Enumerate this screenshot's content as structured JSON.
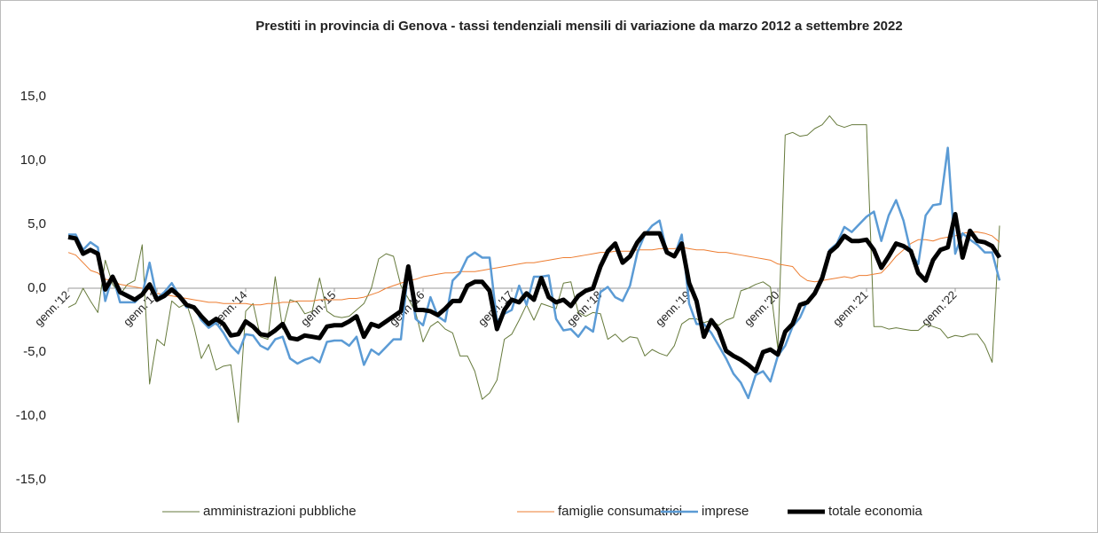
{
  "chart_data": {
    "type": "line",
    "title": "Prestiti in provincia di Genova - tassi tendenziali mensili di variazione da marzo 2012 a settembre 2022",
    "categories": [
      "genn.'12",
      null,
      null,
      null,
      null,
      null,
      null,
      null,
      null,
      null,
      null,
      null,
      "genn.'13",
      null,
      null,
      null,
      null,
      null,
      null,
      null,
      null,
      null,
      null,
      null,
      "genn.'14",
      null,
      null,
      null,
      null,
      null,
      null,
      null,
      null,
      null,
      null,
      null,
      "genn.'15",
      null,
      null,
      null,
      null,
      null,
      null,
      null,
      null,
      null,
      null,
      null,
      "genn.'16",
      null,
      null,
      null,
      null,
      null,
      null,
      null,
      null,
      null,
      null,
      null,
      "genn.'17",
      null,
      null,
      null,
      null,
      null,
      null,
      null,
      null,
      null,
      null,
      null,
      "genn.'18",
      null,
      null,
      null,
      null,
      null,
      null,
      null,
      null,
      null,
      null,
      null,
      "genn.'19",
      null,
      null,
      null,
      null,
      null,
      null,
      null,
      null,
      null,
      null,
      null,
      "genn.'20",
      null,
      null,
      null,
      null,
      null,
      null,
      null,
      null,
      null,
      null,
      null,
      "genn.'21",
      null,
      null,
      null,
      null,
      null,
      null,
      null,
      null,
      null,
      null,
      null,
      "genn.'22",
      null,
      null,
      null,
      null,
      null,
      null
    ],
    "series": [
      {
        "name": "amministrazioni pubbliche",
        "color": "#667a3c",
        "values": [
          -1.5,
          -1.2,
          0.0,
          -1.0,
          -1.9,
          2.2,
          0.3,
          -0.5,
          0.3,
          0.6,
          3.4,
          -7.5,
          -4.0,
          -4.5,
          -1.0,
          -1.5,
          -1.2,
          -3.0,
          -5.5,
          -4.4,
          -6.4,
          -6.1,
          -6.0,
          -10.5,
          -1.8,
          -1.2,
          -3.8,
          -4.0,
          0.9,
          -3.2,
          -0.9,
          -1.1,
          -2.0,
          -1.8,
          0.8,
          -1.8,
          -2.2,
          -2.3,
          -2.2,
          -1.7,
          -1.2,
          0.0,
          2.3,
          2.7,
          2.5,
          0.2,
          -0.8,
          -1.9,
          -4.2,
          -3.0,
          -2.6,
          -3.2,
          -3.5,
          -5.3,
          -5.3,
          -6.5,
          -8.7,
          -8.2,
          -7.2,
          -4.0,
          -3.6,
          -2.5,
          -1.3,
          -2.5,
          -1.2,
          -1.4,
          -1.6,
          0.4,
          0.5,
          -1.9,
          -2.2,
          -1.9,
          -2.0,
          -4.0,
          -3.6,
          -4.2,
          -3.8,
          -3.9,
          -5.3,
          -4.8,
          -5.1,
          -5.3,
          -4.5,
          -2.8,
          -2.4,
          -2.4,
          -2.7,
          -2.5,
          -2.9,
          -2.5,
          -2.3,
          -0.2,
          0.0,
          0.3,
          0.5,
          0.1,
          -4.7,
          12.0,
          12.2,
          11.9,
          12.0,
          12.5,
          12.8,
          13.5,
          12.8,
          12.6,
          12.8,
          12.8,
          12.8,
          -3.0,
          -3.0,
          -3.2,
          -3.1,
          -3.2,
          -3.3,
          -3.3,
          -2.8,
          -3.0,
          -3.2,
          -3.9,
          -3.7,
          -3.8,
          -3.6,
          -3.6,
          -4.4,
          -5.8,
          4.9
        ]
      },
      {
        "name": "famiglie consumatrici",
        "color": "#ed7d31",
        "values": [
          2.8,
          2.6,
          2.0,
          1.4,
          1.2,
          0.7,
          0.6,
          0.3,
          0.2,
          0.1,
          0.0,
          -0.1,
          -0.4,
          -0.5,
          -0.6,
          -0.7,
          -0.8,
          -0.9,
          -1.0,
          -1.1,
          -1.1,
          -1.2,
          -1.2,
          -1.2,
          -1.2,
          -1.3,
          -1.3,
          -1.2,
          -1.2,
          -1.1,
          -1.1,
          -1.0,
          -1.0,
          -1.0,
          -0.9,
          -0.9,
          -0.9,
          -0.9,
          -0.8,
          -0.8,
          -0.7,
          -0.5,
          -0.3,
          0.0,
          0.2,
          0.4,
          0.6,
          0.7,
          0.9,
          1.0,
          1.1,
          1.2,
          1.2,
          1.3,
          1.3,
          1.3,
          1.4,
          1.5,
          1.6,
          1.7,
          1.8,
          1.9,
          2.0,
          2.0,
          2.1,
          2.2,
          2.3,
          2.4,
          2.4,
          2.5,
          2.6,
          2.7,
          2.8,
          2.8,
          2.9,
          2.9,
          2.9,
          3.0,
          3.0,
          3.0,
          3.1,
          3.1,
          3.1,
          3.2,
          3.1,
          3.0,
          3.0,
          2.9,
          2.8,
          2.8,
          2.7,
          2.6,
          2.5,
          2.4,
          2.3,
          2.2,
          1.9,
          1.8,
          1.7,
          1.0,
          0.6,
          0.5,
          0.6,
          0.7,
          0.8,
          0.9,
          0.8,
          1.0,
          1.0,
          1.1,
          1.2,
          1.8,
          2.5,
          3.0,
          3.5,
          3.8,
          3.8,
          3.7,
          3.9,
          4.0,
          4.1,
          4.3,
          4.4,
          4.4,
          4.3,
          4.1,
          3.6
        ]
      },
      {
        "name": "imprese",
        "color": "#5b9bd5",
        "values": [
          4.2,
          4.2,
          3.0,
          3.6,
          3.2,
          -1.0,
          1.0,
          -1.1,
          -1.1,
          -1.1,
          -0.5,
          2.0,
          -0.8,
          -0.3,
          0.4,
          -0.6,
          -1.5,
          -1.4,
          -2.5,
          -3.1,
          -2.7,
          -3.5,
          -4.5,
          -5.1,
          -3.6,
          -3.7,
          -4.5,
          -4.8,
          -4.0,
          -3.8,
          -5.5,
          -5.9,
          -5.6,
          -5.4,
          -5.8,
          -4.2,
          -4.1,
          -4.1,
          -4.5,
          -3.8,
          -6.0,
          -4.8,
          -5.2,
          -4.6,
          -4.0,
          -4.0,
          1.5,
          -2.4,
          -2.9,
          -0.7,
          -2.2,
          -2.6,
          0.6,
          1.2,
          2.4,
          2.8,
          2.4,
          2.4,
          -2.6,
          -2.0,
          -1.7,
          0.2,
          -1.3,
          0.9,
          0.9,
          1.0,
          -2.4,
          -3.3,
          -3.2,
          -3.8,
          -3.0,
          -3.4,
          -0.3,
          0.1,
          -0.7,
          -1.0,
          0.2,
          2.8,
          4.2,
          4.9,
          5.3,
          2.8,
          2.5,
          4.2,
          -1.2,
          -2.8,
          -2.8,
          -3.5,
          -4.5,
          -5.5,
          -6.7,
          -7.4,
          -8.6,
          -6.8,
          -6.5,
          -7.3,
          -5.3,
          -4.5,
          -3.0,
          -2.3,
          -1.0,
          -0.5,
          0.8,
          3.0,
          3.5,
          4.8,
          4.4,
          5.0,
          5.6,
          6.0,
          3.7,
          5.7,
          6.9,
          5.3,
          2.8,
          1.9,
          5.7,
          6.5,
          6.6,
          11.0,
          2.7,
          4.3,
          3.8,
          3.4,
          2.8,
          2.8,
          0.6
        ]
      },
      {
        "name": "totale economia",
        "color": "#000000",
        "values": [
          4.0,
          3.9,
          2.7,
          3.0,
          2.7,
          -0.1,
          0.9,
          -0.3,
          -0.6,
          -0.9,
          -0.5,
          0.3,
          -0.9,
          -0.6,
          -0.1,
          -0.6,
          -1.3,
          -1.5,
          -2.2,
          -2.8,
          -2.4,
          -2.8,
          -3.7,
          -3.6,
          -2.6,
          -3.0,
          -3.6,
          -3.7,
          -3.3,
          -2.8,
          -3.9,
          -4.0,
          -3.7,
          -3.8,
          -3.9,
          -3.0,
          -2.9,
          -2.9,
          -2.6,
          -2.2,
          -3.8,
          -2.8,
          -3.0,
          -2.6,
          -2.2,
          -1.8,
          1.7,
          -1.7,
          -1.7,
          -1.8,
          -2.1,
          -1.6,
          -1.0,
          -1.0,
          0.2,
          0.5,
          0.5,
          -0.2,
          -3.2,
          -1.7,
          -0.9,
          -1.1,
          -0.4,
          -0.9,
          0.8,
          -0.7,
          -1.1,
          -0.9,
          -1.4,
          -0.6,
          -0.2,
          0.0,
          1.7,
          2.9,
          3.5,
          2.0,
          2.5,
          3.6,
          4.3,
          4.3,
          4.3,
          2.8,
          2.5,
          3.5,
          0.4,
          -1.0,
          -3.8,
          -2.5,
          -3.3,
          -4.9,
          -5.3,
          -5.6,
          -6.0,
          -6.5,
          -5.0,
          -4.8,
          -5.2,
          -3.4,
          -2.8,
          -1.3,
          -1.1,
          -0.4,
          0.8,
          2.8,
          3.3,
          4.1,
          3.7,
          3.7,
          3.8,
          3.0,
          1.6,
          2.5,
          3.5,
          3.3,
          2.9,
          1.2,
          0.6,
          2.2,
          3.0,
          3.2,
          5.8,
          2.4,
          4.5,
          3.7,
          3.6,
          3.3,
          2.4
        ]
      }
    ],
    "ylim": [
      -15,
      20
    ],
    "yticks": [
      {
        "value": -15,
        "label": "-15,0"
      },
      {
        "value": -10,
        "label": "-10,0"
      },
      {
        "value": -5,
        "label": "-5,0"
      },
      {
        "value": 0,
        "label": "0,0"
      },
      {
        "value": 5,
        "label": "5,0"
      },
      {
        "value": 10,
        "label": "10,0"
      },
      {
        "value": 15,
        "label": "15,0"
      }
    ],
    "grid": false,
    "legend": "bottom"
  }
}
